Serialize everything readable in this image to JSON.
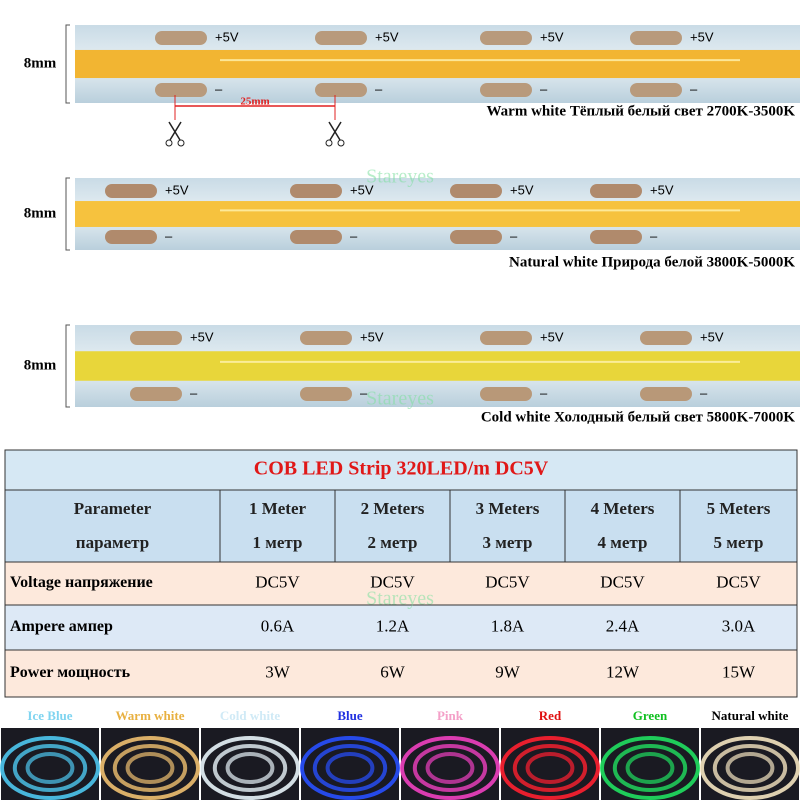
{
  "strips": [
    {
      "width_label": "8mm",
      "caption": "Warm white Тёплый белый свет 2700K-3500K",
      "plus": [
        "+5V",
        "+5V",
        "+5V",
        "+5V"
      ],
      "minus": [
        "–",
        "–",
        "–",
        "–"
      ]
    },
    {
      "width_label": "8mm",
      "caption": "Natural white Природа белой 3800K-5000K",
      "plus": [
        "+5V",
        "+5V",
        "+5V",
        "+5V"
      ],
      "minus": [
        "–",
        "–",
        "–",
        "–"
      ]
    },
    {
      "width_label": "8mm",
      "caption": "Cold white Холодный белый свет 5800K-7000K",
      "plus": [
        "+5V",
        "+5V",
        "+5V",
        "+5V"
      ],
      "minus": [
        "–",
        "–",
        "–",
        "–"
      ]
    }
  ],
  "cut_spacing": "25mm",
  "watermark": "Stareyes",
  "table": {
    "title": "COB LED Strip 320LED/m DC5V",
    "header": [
      [
        "Parameter",
        "параметр"
      ],
      [
        "1 Meter",
        "1 метр"
      ],
      [
        "2 Meters",
        "2 метр"
      ],
      [
        "3 Meters",
        "3 метр"
      ],
      [
        "4 Meters",
        "4 метр"
      ],
      [
        "5 Meters",
        "5 метр"
      ]
    ],
    "rows": [
      [
        "Voltage напряжение",
        "DC5V",
        "DC5V",
        "DC5V",
        "DC5V",
        "DC5V"
      ],
      [
        "Ampere ампер",
        "0.6A",
        "1.2A",
        "1.8A",
        "2.4A",
        "3.0A"
      ],
      [
        "Power мощность",
        "3W",
        "6W",
        "9W",
        "12W",
        "15W"
      ]
    ]
  },
  "colors": [
    "Ice Blue",
    "Warm white",
    "Cold white",
    "Blue",
    "Pink",
    "Red",
    "Green",
    "Natural white"
  ]
}
